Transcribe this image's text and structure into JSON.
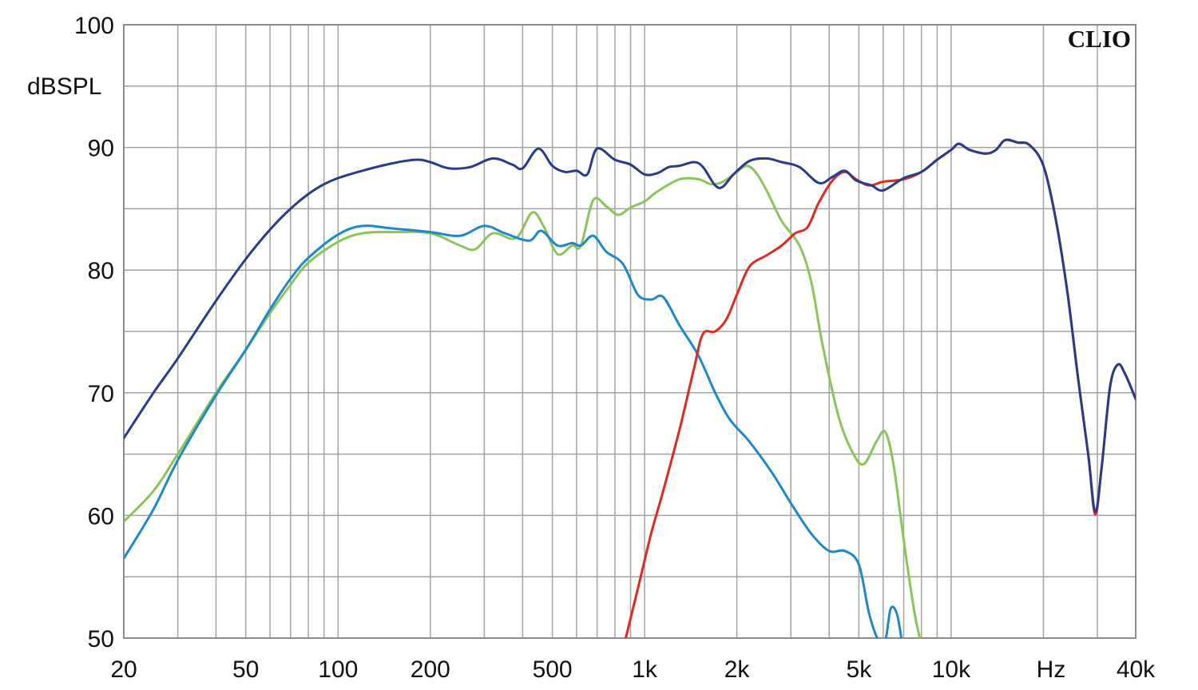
{
  "brand": "CLIO",
  "chart_data": {
    "type": "line",
    "ylabel": "dBSPL",
    "xunit": "Hz",
    "xscale": "log",
    "xlim": [
      20,
      40000
    ],
    "ylim": [
      50,
      100
    ],
    "grid": true,
    "x_ticks": [
      {
        "value": 20,
        "label": "20"
      },
      {
        "value": 50,
        "label": "50"
      },
      {
        "value": 100,
        "label": "100"
      },
      {
        "value": 200,
        "label": "200"
      },
      {
        "value": 500,
        "label": "500"
      },
      {
        "value": 1000,
        "label": "1k"
      },
      {
        "value": 2000,
        "label": "2k"
      },
      {
        "value": 5000,
        "label": "5k"
      },
      {
        "value": 10000,
        "label": "10k"
      },
      {
        "value": 40000,
        "label": "40k"
      }
    ],
    "y_ticks": [
      {
        "value": 100,
        "label": "100"
      },
      {
        "value": 90,
        "label": "90"
      },
      {
        "value": 80,
        "label": "80"
      },
      {
        "value": 70,
        "label": "70"
      },
      {
        "value": 60,
        "label": "60"
      },
      {
        "value": 50,
        "label": "50"
      }
    ],
    "series": [
      {
        "color": "#8cc45a",
        "points": [
          [
            20,
            59.5
          ],
          [
            25,
            62
          ],
          [
            30,
            65
          ],
          [
            40,
            70
          ],
          [
            50,
            73.5
          ],
          [
            60,
            76.5
          ],
          [
            70,
            78.8
          ],
          [
            80,
            80.6
          ],
          [
            100,
            82.3
          ],
          [
            120,
            83
          ],
          [
            150,
            83.1
          ],
          [
            200,
            83
          ],
          [
            250,
            82
          ],
          [
            280,
            81.7
          ],
          [
            320,
            83
          ],
          [
            380,
            82.6
          ],
          [
            430,
            84.7
          ],
          [
            470,
            83.5
          ],
          [
            520,
            81.3
          ],
          [
            580,
            82
          ],
          [
            620,
            82
          ],
          [
            680,
            85.7
          ],
          [
            750,
            85.2
          ],
          [
            820,
            84.5
          ],
          [
            900,
            85.1
          ],
          [
            1000,
            85.6
          ],
          [
            1100,
            86.4
          ],
          [
            1300,
            87.4
          ],
          [
            1500,
            87.4
          ],
          [
            1650,
            87
          ],
          [
            1800,
            87.2
          ],
          [
            2000,
            88
          ],
          [
            2150,
            88.5
          ],
          [
            2300,
            88
          ],
          [
            2500,
            86.5
          ],
          [
            2800,
            84
          ],
          [
            3200,
            82
          ],
          [
            3500,
            79
          ],
          [
            3800,
            74
          ],
          [
            4300,
            68
          ],
          [
            4800,
            65
          ],
          [
            5200,
            64.2
          ],
          [
            5700,
            66
          ],
          [
            6100,
            66.8
          ],
          [
            6500,
            64
          ],
          [
            7000,
            58
          ],
          [
            7600,
            52
          ],
          [
            8000,
            49.5
          ]
        ]
      },
      {
        "color": "#1e88c8",
        "points": [
          [
            20,
            56.5
          ],
          [
            25,
            60.5
          ],
          [
            30,
            64.5
          ],
          [
            40,
            69.8
          ],
          [
            50,
            73.5
          ],
          [
            60,
            76.8
          ],
          [
            70,
            79.3
          ],
          [
            80,
            81
          ],
          [
            100,
            82.9
          ],
          [
            120,
            83.6
          ],
          [
            150,
            83.4
          ],
          [
            200,
            83.1
          ],
          [
            250,
            82.8
          ],
          [
            300,
            83.6
          ],
          [
            350,
            83
          ],
          [
            420,
            82.4
          ],
          [
            460,
            83.2
          ],
          [
            520,
            82
          ],
          [
            580,
            82.2
          ],
          [
            620,
            82
          ],
          [
            680,
            82.8
          ],
          [
            750,
            81.5
          ],
          [
            850,
            80.5
          ],
          [
            950,
            78
          ],
          [
            1050,
            77.6
          ],
          [
            1150,
            77.8
          ],
          [
            1300,
            75.5
          ],
          [
            1500,
            73
          ],
          [
            1700,
            70
          ],
          [
            1900,
            67.8
          ],
          [
            2200,
            66
          ],
          [
            2600,
            63.5
          ],
          [
            3000,
            61
          ],
          [
            3500,
            58.5
          ],
          [
            4000,
            57.1
          ],
          [
            4500,
            57.1
          ],
          [
            5000,
            56
          ],
          [
            5400,
            52
          ],
          [
            5800,
            49.8
          ],
          [
            6100,
            49.8
          ],
          [
            6350,
            52.4
          ],
          [
            6650,
            52
          ],
          [
            6900,
            49.8
          ]
        ]
      },
      {
        "color": "#de2a20",
        "points": [
          [
            860,
            49.6
          ],
          [
            950,
            54
          ],
          [
            1050,
            58.5
          ],
          [
            1150,
            62
          ],
          [
            1300,
            67
          ],
          [
            1450,
            72
          ],
          [
            1550,
            74.8
          ],
          [
            1700,
            75
          ],
          [
            1850,
            76
          ],
          [
            2000,
            78
          ],
          [
            2200,
            80.3
          ],
          [
            2500,
            81.2
          ],
          [
            2800,
            82
          ],
          [
            3100,
            83
          ],
          [
            3400,
            83.5
          ],
          [
            3700,
            85.5
          ],
          [
            4100,
            87.3
          ],
          [
            4500,
            88
          ],
          [
            4900,
            87.4
          ],
          [
            5400,
            86.9
          ],
          [
            6000,
            87.2
          ],
          [
            7000,
            87.4
          ],
          [
            8000,
            88
          ],
          [
            9000,
            89
          ],
          [
            10000,
            89.8
          ],
          [
            10600,
            90.3
          ],
          [
            11500,
            89.8
          ],
          [
            13000,
            89.5
          ],
          [
            14000,
            89.8
          ],
          [
            15000,
            90.6
          ],
          [
            16500,
            90.4
          ],
          [
            18000,
            90.2
          ],
          [
            20000,
            88.5
          ],
          [
            22000,
            84
          ],
          [
            24000,
            78
          ],
          [
            26000,
            71
          ],
          [
            28000,
            65
          ],
          [
            29500,
            60.1
          ],
          [
            31000,
            64
          ],
          [
            33000,
            70.5
          ],
          [
            35000,
            72.3
          ],
          [
            37000,
            71.5
          ],
          [
            40000,
            69.5
          ]
        ]
      },
      {
        "color": "#283c8a",
        "points": [
          [
            20,
            66.3
          ],
          [
            25,
            70
          ],
          [
            30,
            72.8
          ],
          [
            40,
            77.5
          ],
          [
            50,
            80.9
          ],
          [
            60,
            83.3
          ],
          [
            70,
            85
          ],
          [
            80,
            86.2
          ],
          [
            90,
            87
          ],
          [
            100,
            87.5
          ],
          [
            120,
            88.1
          ],
          [
            150,
            88.7
          ],
          [
            180,
            89
          ],
          [
            200,
            88.8
          ],
          [
            230,
            88.3
          ],
          [
            270,
            88.4
          ],
          [
            320,
            89.1
          ],
          [
            370,
            88.6
          ],
          [
            400,
            88.3
          ],
          [
            450,
            89.9
          ],
          [
            500,
            88.5
          ],
          [
            550,
            88
          ],
          [
            600,
            88.1
          ],
          [
            650,
            87.8
          ],
          [
            700,
            89.9
          ],
          [
            800,
            89
          ],
          [
            900,
            88.6
          ],
          [
            1000,
            87.8
          ],
          [
            1100,
            87.9
          ],
          [
            1200,
            88.4
          ],
          [
            1300,
            88.5
          ],
          [
            1450,
            88.8
          ],
          [
            1550,
            88.4
          ],
          [
            1700,
            86.9
          ],
          [
            1800,
            86.8
          ],
          [
            1950,
            87.8
          ],
          [
            2200,
            88.9
          ],
          [
            2500,
            89.1
          ],
          [
            2800,
            88.8
          ],
          [
            3200,
            88.4
          ],
          [
            3700,
            87.1
          ],
          [
            4100,
            87.6
          ],
          [
            4500,
            88.1
          ],
          [
            4900,
            87.3
          ],
          [
            5500,
            86.9
          ],
          [
            6000,
            86.5
          ],
          [
            7000,
            87.5
          ],
          [
            8000,
            88
          ],
          [
            9000,
            89
          ],
          [
            10000,
            89.8
          ],
          [
            10600,
            90.3
          ],
          [
            11500,
            89.8
          ],
          [
            13000,
            89.5
          ],
          [
            14000,
            89.8
          ],
          [
            15000,
            90.6
          ],
          [
            16500,
            90.4
          ],
          [
            18000,
            90.2
          ],
          [
            20000,
            88.5
          ],
          [
            22000,
            84
          ],
          [
            24000,
            78
          ],
          [
            26000,
            71
          ],
          [
            28000,
            65
          ],
          [
            29500,
            60.3
          ],
          [
            31000,
            64
          ],
          [
            33000,
            70.5
          ],
          [
            35000,
            72.3
          ],
          [
            37000,
            71.5
          ],
          [
            40000,
            69.5
          ]
        ]
      }
    ]
  }
}
